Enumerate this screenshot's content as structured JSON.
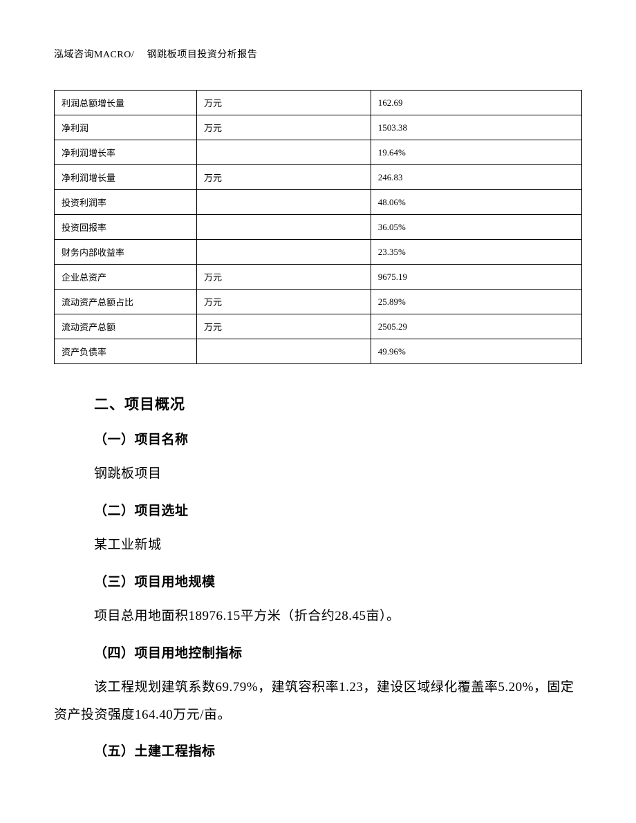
{
  "header": {
    "text": "泓域咨询MACRO/　 钢跳板项目投资分析报告"
  },
  "table": {
    "border_color": "#000000",
    "font_size": 13,
    "rows": [
      {
        "label": "利润总额增长量",
        "unit": "万元",
        "value": "162.69"
      },
      {
        "label": "净利润",
        "unit": "万元",
        "value": "1503.38"
      },
      {
        "label": "净利润增长率",
        "unit": "",
        "value": "19.64%"
      },
      {
        "label": "净利润增长量",
        "unit": "万元",
        "value": "246.83"
      },
      {
        "label": "投资利润率",
        "unit": "",
        "value": "48.06%"
      },
      {
        "label": "投资回报率",
        "unit": "",
        "value": "36.05%"
      },
      {
        "label": "财务内部收益率",
        "unit": "",
        "value": "23.35%"
      },
      {
        "label": "企业总资产",
        "unit": "万元",
        "value": "9675.19"
      },
      {
        "label": "流动资产总额占比",
        "unit": "万元",
        "value": "25.89%"
      },
      {
        "label": "流动资产总额",
        "unit": "万元",
        "value": "2505.29"
      },
      {
        "label": "资产负债率",
        "unit": "",
        "value": "49.96%"
      }
    ]
  },
  "sections": {
    "main_heading": "二、项目概况",
    "sub1": {
      "heading": "（一）项目名称",
      "body": "钢跳板项目"
    },
    "sub2": {
      "heading": "（二）项目选址",
      "body": "某工业新城"
    },
    "sub3": {
      "heading": "（三）项目用地规模",
      "body": "项目总用地面积18976.15平方米（折合约28.45亩）。"
    },
    "sub4": {
      "heading": "（四）项目用地控制指标",
      "body": "该工程规划建筑系数69.79%，建筑容积率1.23，建设区域绿化覆盖率5.20%，固定资产投资强度164.40万元/亩。"
    },
    "sub5": {
      "heading": "（五）土建工程指标"
    }
  },
  "styles": {
    "background_color": "#ffffff",
    "text_color": "#000000",
    "heading_font": "SimHei",
    "body_font": "SimSun",
    "heading_fontsize": 21,
    "subheading_fontsize": 19,
    "body_fontsize": 19
  }
}
